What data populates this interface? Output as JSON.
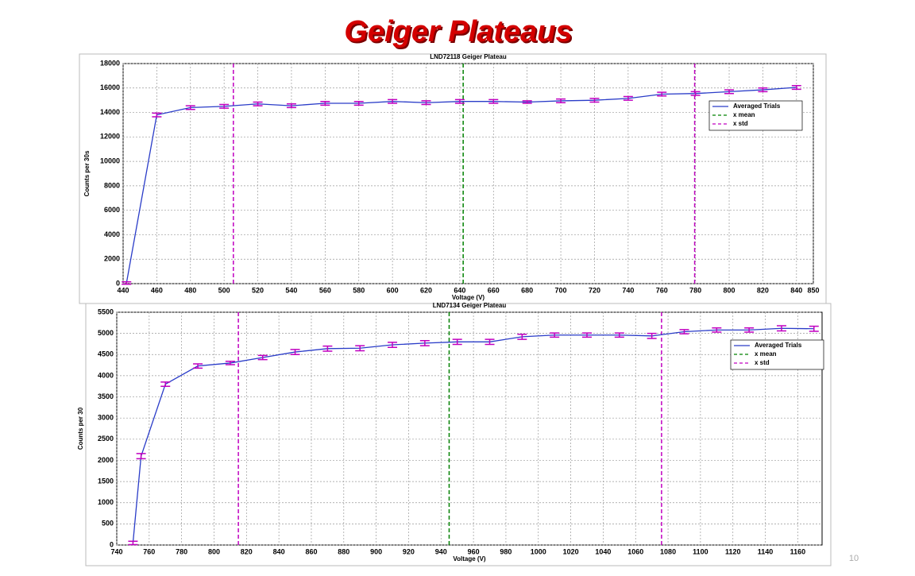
{
  "title": "Geiger Plateaus",
  "page_number": "10",
  "chart_data": [
    {
      "type": "line",
      "title": "LND72118 Geiger Plateau",
      "x_label": "Voltage (V)",
      "y_label": "Counts per 30s",
      "x": [
        442,
        460,
        480,
        500,
        520,
        540,
        560,
        580,
        600,
        620,
        640,
        660,
        680,
        700,
        720,
        740,
        760,
        780,
        800,
        820,
        840
      ],
      "series": [
        {
          "name": "Averaged Trials",
          "color": "#2a3cc8",
          "values": [
            50,
            13800,
            14400,
            14500,
            14700,
            14550,
            14750,
            14750,
            14900,
            14800,
            14900,
            14900,
            14850,
            14950,
            15000,
            15150,
            15500,
            15550,
            15700,
            15850,
            16050
          ],
          "errors": [
            100,
            150,
            150,
            150,
            150,
            150,
            150,
            150,
            150,
            150,
            150,
            150,
            100,
            150,
            150,
            150,
            150,
            150,
            150,
            150,
            150
          ]
        }
      ],
      "vlines": [
        {
          "name": "x mean",
          "color": "#008000",
          "x": [
            642
          ]
        },
        {
          "name": "x std",
          "color": "#c000c0",
          "x": [
            505.5,
            779.5
          ]
        }
      ],
      "xlim": [
        440,
        850
      ],
      "ylim": [
        0,
        18000
      ],
      "xticks": [
        440,
        460,
        480,
        500,
        520,
        540,
        560,
        580,
        600,
        620,
        640,
        660,
        680,
        700,
        720,
        740,
        760,
        780,
        800,
        820,
        840,
        850
      ],
      "yticks": [
        0,
        2000,
        4000,
        6000,
        8000,
        10000,
        12000,
        14000,
        16000,
        18000
      ],
      "grid": true,
      "legend": "upper right"
    },
    {
      "type": "line",
      "title": "LND7134 Geiger Plateau",
      "x_label": "Voltage (V)",
      "y_label": "Counts per 30",
      "x": [
        750,
        755,
        770,
        790,
        810,
        830,
        850,
        870,
        890,
        910,
        930,
        950,
        970,
        990,
        1010,
        1030,
        1050,
        1070,
        1090,
        1110,
        1130,
        1150,
        1170
      ],
      "series": [
        {
          "name": "Averaged Trials",
          "color": "#2a3cc8",
          "values": [
            50,
            2100,
            3800,
            4230,
            4300,
            4430,
            4560,
            4640,
            4650,
            4730,
            4770,
            4800,
            4800,
            4920,
            4960,
            4960,
            4960,
            4940,
            5040,
            5080,
            5080,
            5120,
            5110
          ],
          "errors": [
            40,
            60,
            50,
            50,
            40,
            50,
            60,
            60,
            60,
            60,
            60,
            60,
            60,
            60,
            50,
            50,
            50,
            60,
            50,
            50,
            50,
            60,
            60
          ]
        }
      ],
      "vlines": [
        {
          "name": "x mean",
          "color": "#008000",
          "x": [
            945
          ]
        },
        {
          "name": "x std",
          "color": "#c000c0",
          "x": [
            815,
            1076
          ]
        }
      ],
      "xlim": [
        740,
        1175
      ],
      "ylim": [
        0,
        5500
      ],
      "xticks": [
        740,
        760,
        780,
        800,
        820,
        840,
        860,
        880,
        900,
        920,
        940,
        960,
        980,
        1000,
        1020,
        1040,
        1060,
        1080,
        1100,
        1120,
        1140,
        1160
      ],
      "yticks": [
        0,
        500,
        1000,
        1500,
        2000,
        2500,
        3000,
        3500,
        4000,
        4500,
        5000,
        5500
      ],
      "grid": true,
      "legend": "upper right"
    }
  ]
}
